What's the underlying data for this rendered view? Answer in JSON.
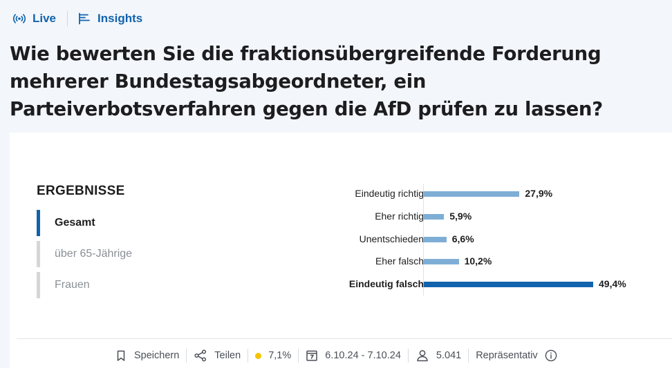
{
  "nav": {
    "live_label": "Live",
    "insights_label": "Insights",
    "accent_color": "#1163ad"
  },
  "question": "Wie bewerten Sie die fraktionsübergreifende Forderung mehrerer Bundestagsabgeordneter, ein Parteiverbotsverfahren gegen die AfD prüfen zu lassen?",
  "results": {
    "title": "ERGEBNISSE",
    "filters": [
      {
        "label": "Gesamt",
        "active": true
      },
      {
        "label": "über 65-Jährige",
        "active": false
      },
      {
        "label": "Frauen",
        "active": false
      }
    ]
  },
  "chart_data": {
    "type": "bar",
    "orientation": "horizontal",
    "categories": [
      "Eindeutig richtig",
      "Eher richtig",
      "Unentschieden",
      "Eher falsch",
      "Eindeutig falsch"
    ],
    "values": [
      27.9,
      5.9,
      6.6,
      10.2,
      49.4
    ],
    "value_labels": [
      "27,9%",
      "5,9%",
      "6,6%",
      "10,2%",
      "49,4%"
    ],
    "unit": "%",
    "highlight_index": 4,
    "colors": {
      "default": "#7eaed6",
      "highlight": "#1163ad"
    },
    "xlim": [
      0,
      50
    ],
    "grid": false,
    "legend": "none"
  },
  "footer": {
    "save_label": "Speichern",
    "share_label": "Teilen",
    "margin_of_error": "7,1%",
    "status_color": "#f5c400",
    "period": "6.10.24 - 7.10.24",
    "respondents": "5.041",
    "representative_label": "Repräsentativ",
    "icons": [
      "bookmark-icon",
      "share-icon",
      "status-dot",
      "calendar-icon",
      "person-icon",
      "info-icon"
    ]
  }
}
